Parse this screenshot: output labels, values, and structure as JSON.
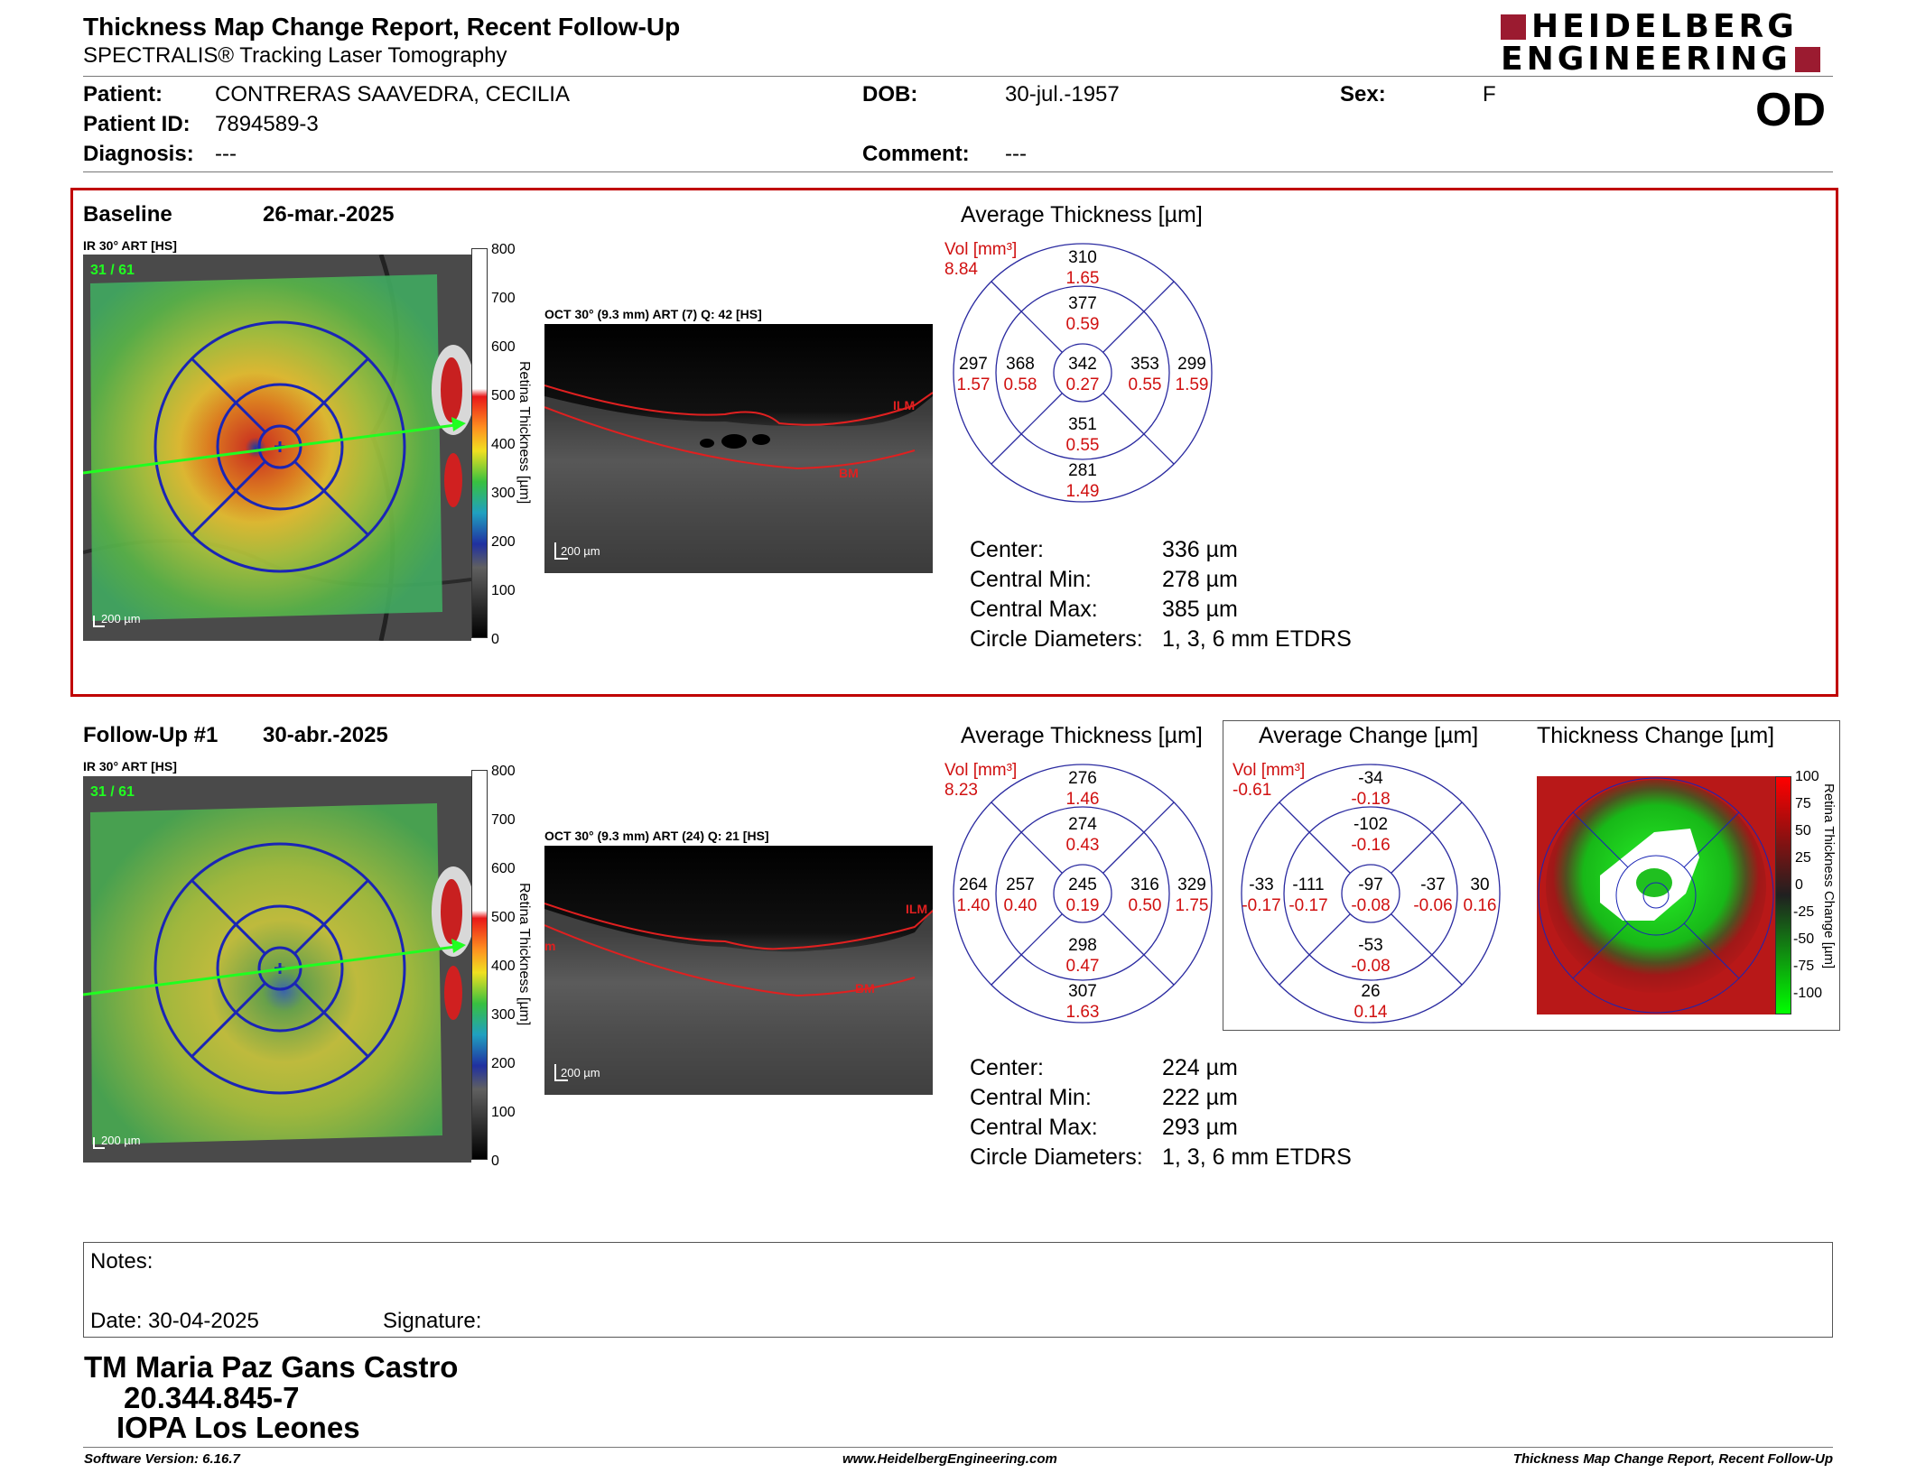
{
  "header": {
    "title": "Thickness Map Change Report, Recent Follow-Up",
    "subtitle": "SPECTRALIS® Tracking Laser Tomography",
    "logo_line1": "HEIDELBERG",
    "logo_line2": "ENGINEERING",
    "eye": "OD"
  },
  "patient": {
    "patient_label": "Patient:",
    "patient_value": "CONTRERAS SAAVEDRA, CECILIA",
    "id_label": "Patient ID:",
    "id_value": "7894589-3",
    "diagnosis_label": "Diagnosis:",
    "diagnosis_value": "---",
    "dob_label": "DOB:",
    "dob_value": "30-jul.-1957",
    "comment_label": "Comment:",
    "comment_value": "---",
    "sex_label": "Sex:",
    "sex_value": "F"
  },
  "baseline": {
    "label": "Baseline",
    "date": "26-mar.-2025",
    "ir_label": "IR 30° ART [HS]",
    "ir_counter": "31 / 61",
    "scale_bar": "200 µm",
    "oct_label": "OCT 30° (9.3 mm) ART (7) Q: 42 [HS]",
    "oct_scale": "200 µm",
    "ilm": "ILM",
    "bm": "BM",
    "colorbar_ticks": [
      "800",
      "700",
      "600",
      "500",
      "400",
      "300",
      "200",
      "100",
      "0"
    ],
    "colorbar_title": "Retina Thickness [µm]",
    "avg_title": "Average Thickness [µm]",
    "vol_label": "Vol [mm³]",
    "vol_value": "8.84",
    "etdrs": {
      "outer_sup": {
        "t": "310",
        "v": "1.65"
      },
      "inner_sup": {
        "t": "377",
        "v": "0.59"
      },
      "outer_temp": {
        "t": "297",
        "v": "1.57"
      },
      "inner_temp": {
        "t": "368",
        "v": "0.58"
      },
      "center": {
        "t": "342",
        "v": "0.27"
      },
      "inner_nas": {
        "t": "353",
        "v": "0.55"
      },
      "outer_nas": {
        "t": "299",
        "v": "1.59"
      },
      "inner_inf": {
        "t": "351",
        "v": "0.55"
      },
      "outer_inf": {
        "t": "281",
        "v": "1.49"
      }
    },
    "stats": {
      "center_label": "Center:",
      "center_value": "336 µm",
      "min_label": "Central Min:",
      "min_value": "278 µm",
      "max_label": "Central Max:",
      "max_value": "385 µm",
      "circ_label": "Circle Diameters:",
      "circ_value": "1, 3, 6 mm ETDRS"
    }
  },
  "followup": {
    "label": "Follow-Up #1",
    "date": "30-abr.-2025",
    "ir_label": "IR 30° ART [HS]",
    "ir_counter": "31 / 61",
    "scale_bar": "200 µm",
    "oct_label": "OCT 30° (9.3 mm) ART (24) Q: 21 [HS]",
    "oct_scale": "200 µm",
    "ilm": "ILM",
    "bm": "BM",
    "colorbar_ticks": [
      "800",
      "700",
      "600",
      "500",
      "400",
      "300",
      "200",
      "100",
      "0"
    ],
    "colorbar_title": "Retina Thickness [µm]",
    "avg_title": "Average Thickness [µm]",
    "vol_label": "Vol [mm³]",
    "vol_value": "8.23",
    "etdrs": {
      "outer_sup": {
        "t": "276",
        "v": "1.46"
      },
      "inner_sup": {
        "t": "274",
        "v": "0.43"
      },
      "outer_temp": {
        "t": "264",
        "v": "1.40"
      },
      "inner_temp": {
        "t": "257",
        "v": "0.40"
      },
      "center": {
        "t": "245",
        "v": "0.19"
      },
      "inner_nas": {
        "t": "316",
        "v": "0.50"
      },
      "outer_nas": {
        "t": "329",
        "v": "1.75"
      },
      "inner_inf": {
        "t": "298",
        "v": "0.47"
      },
      "outer_inf": {
        "t": "307",
        "v": "1.63"
      }
    },
    "change_title": "Average Change [µm]",
    "change_vol_label": "Vol [mm³]",
    "change_vol_value": "-0.61",
    "change_etdrs": {
      "outer_sup": {
        "t": "-34",
        "v": "-0.18"
      },
      "inner_sup": {
        "t": "-102",
        "v": "-0.16"
      },
      "outer_temp": {
        "t": "-33",
        "v": "-0.17"
      },
      "inner_temp": {
        "t": "-111",
        "v": "-0.17"
      },
      "center": {
        "t": "-97",
        "v": "-0.08"
      },
      "inner_nas": {
        "t": "-37",
        "v": "-0.06"
      },
      "outer_nas": {
        "t": "30",
        "v": "0.16"
      },
      "inner_inf": {
        "t": "-53",
        "v": "-0.08"
      },
      "outer_inf": {
        "t": "26",
        "v": "0.14"
      }
    },
    "thickness_change_title": "Thickness Change [µm]",
    "change_ticks": [
      "100",
      "75",
      "50",
      "25",
      "0",
      "-25",
      "-50",
      "-75",
      "-100"
    ],
    "change_bar_title": "Retina Thickness Change [µm]",
    "stats": {
      "center_label": "Center:",
      "center_value": "224 µm",
      "min_label": "Central Min:",
      "min_value": "222 µm",
      "max_label": "Central Max:",
      "max_value": "293 µm",
      "circ_label": "Circle Diameters:",
      "circ_value": "1, 3, 6 mm ETDRS"
    }
  },
  "notes": {
    "notes_label": "Notes:",
    "date_label": "Date: 30-04-2025",
    "signature_label": "Signature:"
  },
  "signer": {
    "name": "TM Maria Paz Gans Castro",
    "rut": "20.344.845-7",
    "org": "IOPA Los Leones"
  },
  "footer": {
    "software": "Software Version: 6.16.7",
    "website": "www.HeidelbergEngineering.com",
    "report": "Thickness Map Change Report, Recent Follow-Up"
  },
  "colors": {
    "accent_red": "#c00000",
    "grid_blue": "#1e2aa8",
    "logo_red": "#9b1b30"
  }
}
